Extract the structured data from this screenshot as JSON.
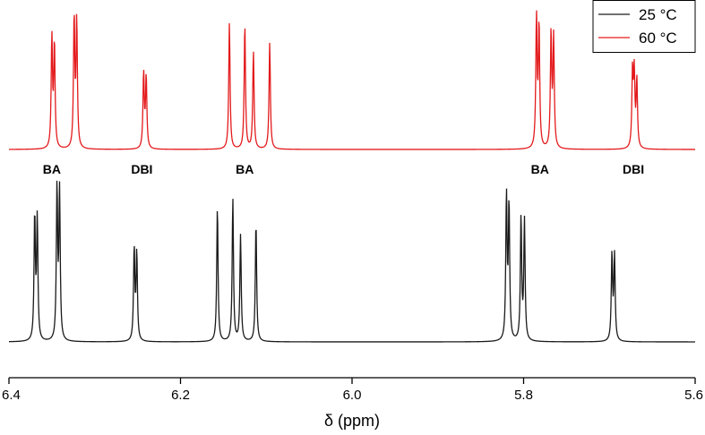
{
  "chart_data": {
    "type": "line",
    "xlabel": "δ (ppm)",
    "xlim": [
      6.4,
      5.6
    ],
    "x_reversed": true,
    "x_ticks": [
      6.4,
      6.2,
      6.0,
      5.8,
      5.6
    ],
    "x_tick_labels": [
      "6.4",
      "6.2",
      "6.0",
      "5.8",
      "5.6"
    ],
    "y_axis_shown": false,
    "grid": false,
    "legend_position": "top-right",
    "peak_annotations": [
      {
        "text": "BA",
        "x": 6.35
      },
      {
        "text": "DBI",
        "x": 6.245
      },
      {
        "text": "BA",
        "x": 6.125
      },
      {
        "text": "BA",
        "x": 5.781
      },
      {
        "text": "DBI",
        "x": 5.672
      }
    ],
    "series": [
      {
        "name": "25 °C",
        "color": "#1a1a1a",
        "peaks": [
          {
            "x": 6.37,
            "h": 0.81
          },
          {
            "x": 6.367,
            "h": 0.79
          },
          {
            "x": 6.344,
            "h": 0.99
          },
          {
            "x": 6.341,
            "h": 0.96
          },
          {
            "x": 6.254,
            "h": 0.6
          },
          {
            "x": 6.251,
            "h": 0.57
          },
          {
            "x": 6.157,
            "h": 0.88
          },
          {
            "x": 6.139,
            "h": 0.93
          },
          {
            "x": 6.13,
            "h": 0.69
          },
          {
            "x": 6.112,
            "h": 0.78
          },
          {
            "x": 5.82,
            "h": 0.94
          },
          {
            "x": 5.817,
            "h": 0.88
          },
          {
            "x": 5.803,
            "h": 0.8
          },
          {
            "x": 5.799,
            "h": 0.78
          },
          {
            "x": 5.697,
            "h": 0.56
          },
          {
            "x": 5.694,
            "h": 0.55
          }
        ]
      },
      {
        "name": "60 °C",
        "color": "#e31a1c",
        "peaks": [
          {
            "x": 6.35,
            "h": 0.85
          },
          {
            "x": 6.347,
            "h": 0.8
          },
          {
            "x": 6.324,
            "h": 1.0
          },
          {
            "x": 6.321,
            "h": 0.97
          },
          {
            "x": 6.243,
            "h": 0.58
          },
          {
            "x": 6.24,
            "h": 0.55
          },
          {
            "x": 6.143,
            "h": 0.97
          },
          {
            "x": 6.125,
            "h": 0.96
          },
          {
            "x": 6.115,
            "h": 0.75
          },
          {
            "x": 6.096,
            "h": 0.82
          },
          {
            "x": 5.785,
            "h": 1.0
          },
          {
            "x": 5.782,
            "h": 0.94
          },
          {
            "x": 5.768,
            "h": 0.88
          },
          {
            "x": 5.765,
            "h": 0.84
          },
          {
            "x": 5.673,
            "h": 0.58
          },
          {
            "x": 5.671,
            "h": 0.55
          },
          {
            "x": 5.668,
            "h": 0.52
          }
        ]
      }
    ]
  }
}
